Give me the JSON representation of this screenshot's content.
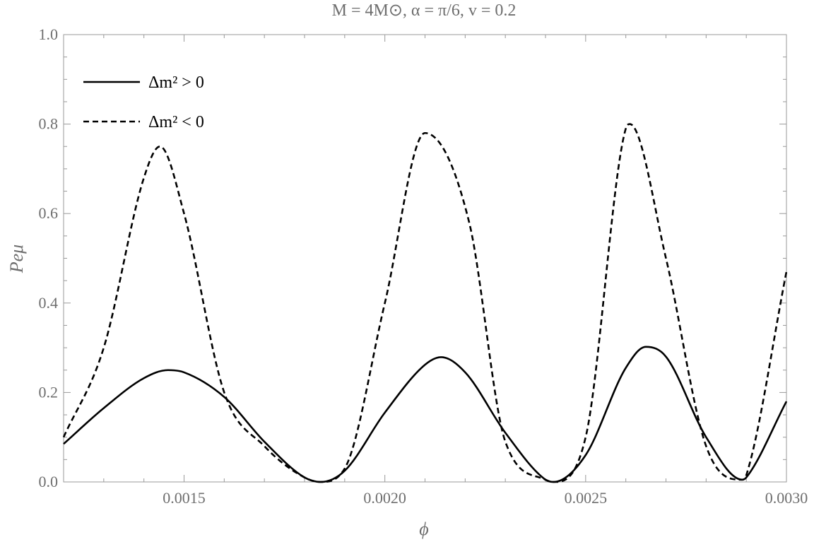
{
  "chart_data": {
    "type": "line",
    "title": "M = 4M⊙, α = π/6, v = 0.2",
    "xlabel": "ϕ",
    "ylabel": "Peμ",
    "xlim": [
      0.0012,
      0.003
    ],
    "ylim": [
      0,
      1.0
    ],
    "x_ticks": [
      {
        "value": 0.0015,
        "label": "0.0015"
      },
      {
        "value": 0.002,
        "label": "0.0020"
      },
      {
        "value": 0.0025,
        "label": "0.0025"
      },
      {
        "value": 0.003,
        "label": "0.0030"
      }
    ],
    "x_minor_step": 0.0001,
    "y_ticks": [
      {
        "value": 0,
        "label": "0.0"
      },
      {
        "value": 0.2,
        "label": "0.2"
      },
      {
        "value": 0.4,
        "label": "0.4"
      },
      {
        "value": 0.6,
        "label": "0.6"
      },
      {
        "value": 0.8,
        "label": "0.8"
      },
      {
        "value": 1.0,
        "label": "1.0"
      }
    ],
    "y_minor_step": 0.05,
    "grid": false,
    "legend_position": "top-left",
    "series": [
      {
        "name": "Δm² > 0",
        "style": "solid",
        "color": "#000000",
        "x": [
          0.0012,
          0.0013,
          0.0014,
          0.00146,
          0.0015,
          0.0016,
          0.0017,
          0.0018,
          0.00184,
          0.0019,
          0.002,
          0.0021,
          0.00214,
          0.0022,
          0.0023,
          0.0024,
          0.00242,
          0.0025,
          0.0026,
          0.00265,
          0.0027,
          0.0028,
          0.00289,
          0.0029,
          0.003
        ],
        "y": [
          0.085,
          0.165,
          0.232,
          0.25,
          0.245,
          0.19,
          0.09,
          0.01,
          0.0,
          0.025,
          0.155,
          0.262,
          0.279,
          0.245,
          0.11,
          0.005,
          0.0,
          0.06,
          0.255,
          0.302,
          0.28,
          0.1,
          0.005,
          0.01,
          0.18
        ]
      },
      {
        "name": "Δm² < 0",
        "style": "dashed",
        "color": "#000000",
        "x": [
          0.0012,
          0.0013,
          0.0014,
          0.00144,
          0.0015,
          0.0016,
          0.0017,
          0.0018,
          0.00184,
          0.0019,
          0.002,
          0.0021,
          0.00221,
          0.0023,
          0.0024,
          0.00242,
          0.0025,
          0.0026,
          0.00261,
          0.0027,
          0.0028,
          0.00289,
          0.0029,
          0.003
        ],
        "y": [
          0.1,
          0.3,
          0.68,
          0.75,
          0.6,
          0.2,
          0.08,
          0.01,
          0.0,
          0.03,
          0.4,
          0.78,
          0.58,
          0.09,
          0.005,
          0.0,
          0.1,
          0.79,
          0.8,
          0.5,
          0.08,
          0.005,
          0.015,
          0.47
        ]
      }
    ]
  }
}
